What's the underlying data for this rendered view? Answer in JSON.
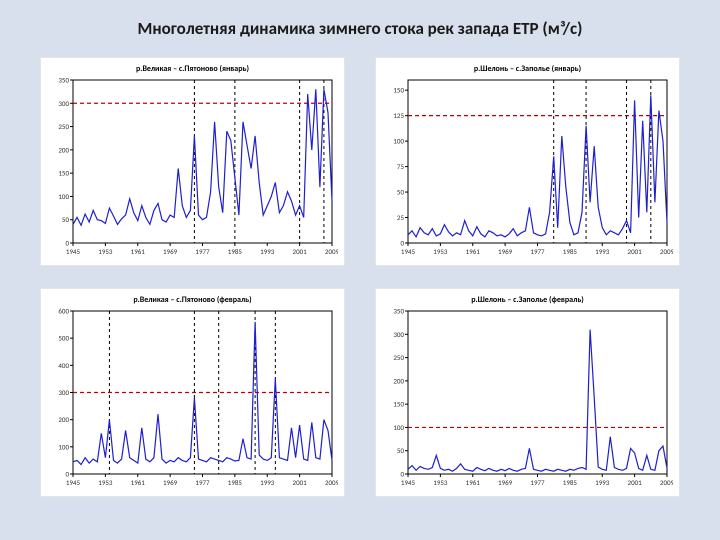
{
  "title": "Многолетняя динамика зимнего стока рек запада ЕТР (м³/с)",
  "background_color": "#d8e0ed",
  "panel_bg": "#ffffff",
  "panels": [
    {
      "type": "line",
      "title": "р.Великая – c.Пятоново (январь)",
      "xlim": [
        1945,
        2009
      ],
      "ylim": [
        0,
        350
      ],
      "xticks": [
        1945,
        1953,
        1961,
        1969,
        1977,
        1985,
        1993,
        2001,
        2009
      ],
      "yticks": [
        0,
        50,
        100,
        150,
        200,
        250,
        300,
        350
      ],
      "series_color": "#1f1fcf",
      "refline_color": "#c00000",
      "refline_y": 300,
      "vdash_color": "#000000",
      "vdash_x": [
        1975,
        1985,
        2001,
        2007
      ],
      "line_width": 1.2,
      "axis_color": "#000000",
      "data": [
        [
          1945,
          40
        ],
        [
          1946,
          55
        ],
        [
          1947,
          38
        ],
        [
          1948,
          62
        ],
        [
          1949,
          45
        ],
        [
          1950,
          70
        ],
        [
          1951,
          50
        ],
        [
          1952,
          48
        ],
        [
          1953,
          42
        ],
        [
          1954,
          75
        ],
        [
          1955,
          58
        ],
        [
          1956,
          40
        ],
        [
          1957,
          52
        ],
        [
          1958,
          60
        ],
        [
          1959,
          95
        ],
        [
          1960,
          65
        ],
        [
          1961,
          48
        ],
        [
          1962,
          80
        ],
        [
          1963,
          55
        ],
        [
          1964,
          40
        ],
        [
          1965,
          70
        ],
        [
          1966,
          85
        ],
        [
          1967,
          50
        ],
        [
          1968,
          45
        ],
        [
          1969,
          60
        ],
        [
          1970,
          55
        ],
        [
          1971,
          160
        ],
        [
          1972,
          80
        ],
        [
          1973,
          55
        ],
        [
          1974,
          70
        ],
        [
          1975,
          230
        ],
        [
          1976,
          60
        ],
        [
          1977,
          50
        ],
        [
          1978,
          55
        ],
        [
          1979,
          110
        ],
        [
          1980,
          260
        ],
        [
          1981,
          120
        ],
        [
          1982,
          65
        ],
        [
          1983,
          240
        ],
        [
          1984,
          220
        ],
        [
          1985,
          140
        ],
        [
          1986,
          60
        ],
        [
          1987,
          260
        ],
        [
          1988,
          210
        ],
        [
          1989,
          160
        ],
        [
          1990,
          230
        ],
        [
          1991,
          130
        ],
        [
          1992,
          60
        ],
        [
          1993,
          80
        ],
        [
          1994,
          100
        ],
        [
          1995,
          130
        ],
        [
          1996,
          65
        ],
        [
          1997,
          80
        ],
        [
          1998,
          110
        ],
        [
          1999,
          90
        ],
        [
          2000,
          60
        ],
        [
          2001,
          80
        ],
        [
          2002,
          55
        ],
        [
          2003,
          320
        ],
        [
          2004,
          200
        ],
        [
          2005,
          330
        ],
        [
          2006,
          120
        ],
        [
          2007,
          330
        ],
        [
          2008,
          280
        ],
        [
          2009,
          90
        ]
      ]
    },
    {
      "type": "line",
      "title": "р.Шелонь – с.Заполье (январь)",
      "xlim": [
        1945,
        2009
      ],
      "ylim": [
        0,
        160
      ],
      "xticks": [
        1945,
        1953,
        1961,
        1969,
        1977,
        1985,
        1993,
        2001,
        2009
      ],
      "yticks": [
        0,
        25,
        50,
        75,
        100,
        125,
        150
      ],
      "series_color": "#1f1fcf",
      "refline_color": "#c00000",
      "refline_y": 125,
      "vdash_color": "#000000",
      "vdash_x": [
        1981,
        1989,
        1999,
        2005
      ],
      "line_width": 1.2,
      "axis_color": "#000000",
      "data": [
        [
          1945,
          8
        ],
        [
          1946,
          12
        ],
        [
          1947,
          6
        ],
        [
          1948,
          15
        ],
        [
          1949,
          10
        ],
        [
          1950,
          8
        ],
        [
          1951,
          14
        ],
        [
          1952,
          7
        ],
        [
          1953,
          9
        ],
        [
          1954,
          18
        ],
        [
          1955,
          11
        ],
        [
          1956,
          7
        ],
        [
          1957,
          10
        ],
        [
          1958,
          8
        ],
        [
          1959,
          22
        ],
        [
          1960,
          12
        ],
        [
          1961,
          7
        ],
        [
          1962,
          16
        ],
        [
          1963,
          9
        ],
        [
          1964,
          6
        ],
        [
          1965,
          12
        ],
        [
          1966,
          10
        ],
        [
          1967,
          7
        ],
        [
          1968,
          8
        ],
        [
          1969,
          6
        ],
        [
          1970,
          9
        ],
        [
          1971,
          14
        ],
        [
          1972,
          7
        ],
        [
          1973,
          10
        ],
        [
          1974,
          12
        ],
        [
          1975,
          35
        ],
        [
          1976,
          10
        ],
        [
          1977,
          8
        ],
        [
          1978,
          7
        ],
        [
          1979,
          9
        ],
        [
          1980,
          30
        ],
        [
          1981,
          85
        ],
        [
          1982,
          15
        ],
        [
          1983,
          105
        ],
        [
          1984,
          55
        ],
        [
          1985,
          20
        ],
        [
          1986,
          8
        ],
        [
          1987,
          10
        ],
        [
          1988,
          30
        ],
        [
          1989,
          115
        ],
        [
          1990,
          40
        ],
        [
          1991,
          95
        ],
        [
          1992,
          35
        ],
        [
          1993,
          15
        ],
        [
          1994,
          8
        ],
        [
          1995,
          12
        ],
        [
          1996,
          10
        ],
        [
          1997,
          8
        ],
        [
          1998,
          14
        ],
        [
          1999,
          22
        ],
        [
          2000,
          10
        ],
        [
          2001,
          140
        ],
        [
          2002,
          25
        ],
        [
          2003,
          120
        ],
        [
          2004,
          30
        ],
        [
          2005,
          145
        ],
        [
          2006,
          40
        ],
        [
          2007,
          130
        ],
        [
          2008,
          100
        ],
        [
          2009,
          20
        ]
      ]
    },
    {
      "type": "line",
      "title": "р.Великая – c.Пятоново (февраль)",
      "xlim": [
        1945,
        2009
      ],
      "ylim": [
        0,
        600
      ],
      "xticks": [
        1945,
        1953,
        1961,
        1969,
        1977,
        1985,
        1993,
        2001,
        2009
      ],
      "yticks": [
        0,
        100,
        200,
        300,
        400,
        500,
        600
      ],
      "series_color": "#1f1fcf",
      "refline_color": "#c00000",
      "refline_y": 300,
      "vdash_color": "#000000",
      "vdash_x": [
        1954,
        1975,
        1981,
        1990,
        1995
      ],
      "line_width": 1.2,
      "axis_color": "#000000",
      "data": [
        [
          1945,
          45
        ],
        [
          1946,
          50
        ],
        [
          1947,
          35
        ],
        [
          1948,
          60
        ],
        [
          1949,
          40
        ],
        [
          1950,
          55
        ],
        [
          1951,
          45
        ],
        [
          1952,
          150
        ],
        [
          1953,
          60
        ],
        [
          1954,
          200
        ],
        [
          1955,
          50
        ],
        [
          1956,
          40
        ],
        [
          1957,
          55
        ],
        [
          1958,
          160
        ],
        [
          1959,
          60
        ],
        [
          1960,
          50
        ],
        [
          1961,
          40
        ],
        [
          1962,
          170
        ],
        [
          1963,
          55
        ],
        [
          1964,
          45
        ],
        [
          1965,
          60
        ],
        [
          1966,
          220
        ],
        [
          1967,
          55
        ],
        [
          1968,
          40
        ],
        [
          1969,
          50
        ],
        [
          1970,
          45
        ],
        [
          1971,
          60
        ],
        [
          1972,
          50
        ],
        [
          1973,
          45
        ],
        [
          1974,
          60
        ],
        [
          1975,
          280
        ],
        [
          1976,
          55
        ],
        [
          1977,
          50
        ],
        [
          1978,
          45
        ],
        [
          1979,
          60
        ],
        [
          1980,
          55
        ],
        [
          1981,
          50
        ],
        [
          1982,
          45
        ],
        [
          1983,
          60
        ],
        [
          1984,
          55
        ],
        [
          1985,
          48
        ],
        [
          1986,
          50
        ],
        [
          1987,
          130
        ],
        [
          1988,
          60
        ],
        [
          1989,
          55
        ],
        [
          1990,
          560
        ],
        [
          1991,
          70
        ],
        [
          1992,
          55
        ],
        [
          1993,
          50
        ],
        [
          1994,
          60
        ],
        [
          1995,
          350
        ],
        [
          1996,
          60
        ],
        [
          1997,
          55
        ],
        [
          1998,
          50
        ],
        [
          1999,
          170
        ],
        [
          2000,
          60
        ],
        [
          2001,
          180
        ],
        [
          2002,
          55
        ],
        [
          2003,
          50
        ],
        [
          2004,
          190
        ],
        [
          2005,
          60
        ],
        [
          2006,
          55
        ],
        [
          2007,
          200
        ],
        [
          2008,
          160
        ],
        [
          2009,
          50
        ]
      ]
    },
    {
      "type": "line",
      "title": "р.Шелонь – с.Заполье (февраль)",
      "xlim": [
        1945,
        2009
      ],
      "ylim": [
        0,
        350
      ],
      "xticks": [
        1945,
        1953,
        1961,
        1969,
        1977,
        1985,
        1993,
        2001,
        2009
      ],
      "yticks": [
        0,
        50,
        100,
        150,
        200,
        250,
        300,
        350
      ],
      "series_color": "#1f1fcf",
      "refline_color": "#c00000",
      "refline_y": 100,
      "vdash_color": "#000000",
      "vdash_x": [],
      "line_width": 1.2,
      "axis_color": "#000000",
      "data": [
        [
          1945,
          10
        ],
        [
          1946,
          18
        ],
        [
          1947,
          8
        ],
        [
          1948,
          16
        ],
        [
          1949,
          12
        ],
        [
          1950,
          10
        ],
        [
          1951,
          14
        ],
        [
          1952,
          40
        ],
        [
          1953,
          12
        ],
        [
          1954,
          8
        ],
        [
          1955,
          10
        ],
        [
          1956,
          6
        ],
        [
          1957,
          12
        ],
        [
          1958,
          22
        ],
        [
          1959,
          10
        ],
        [
          1960,
          8
        ],
        [
          1961,
          6
        ],
        [
          1962,
          14
        ],
        [
          1963,
          10
        ],
        [
          1964,
          7
        ],
        [
          1965,
          12
        ],
        [
          1966,
          8
        ],
        [
          1967,
          6
        ],
        [
          1968,
          10
        ],
        [
          1969,
          7
        ],
        [
          1970,
          12
        ],
        [
          1971,
          8
        ],
        [
          1972,
          6
        ],
        [
          1973,
          10
        ],
        [
          1974,
          12
        ],
        [
          1975,
          55
        ],
        [
          1976,
          10
        ],
        [
          1977,
          8
        ],
        [
          1978,
          6
        ],
        [
          1979,
          10
        ],
        [
          1980,
          8
        ],
        [
          1981,
          6
        ],
        [
          1982,
          10
        ],
        [
          1983,
          8
        ],
        [
          1984,
          6
        ],
        [
          1985,
          10
        ],
        [
          1986,
          8
        ],
        [
          1987,
          12
        ],
        [
          1988,
          14
        ],
        [
          1989,
          10
        ],
        [
          1990,
          310
        ],
        [
          1991,
          165
        ],
        [
          1992,
          15
        ],
        [
          1993,
          10
        ],
        [
          1994,
          8
        ],
        [
          1995,
          80
        ],
        [
          1996,
          14
        ],
        [
          1997,
          10
        ],
        [
          1998,
          8
        ],
        [
          1999,
          12
        ],
        [
          2000,
          55
        ],
        [
          2001,
          45
        ],
        [
          2002,
          12
        ],
        [
          2003,
          8
        ],
        [
          2004,
          40
        ],
        [
          2005,
          10
        ],
        [
          2006,
          8
        ],
        [
          2007,
          50
        ],
        [
          2008,
          60
        ],
        [
          2009,
          12
        ]
      ]
    }
  ]
}
